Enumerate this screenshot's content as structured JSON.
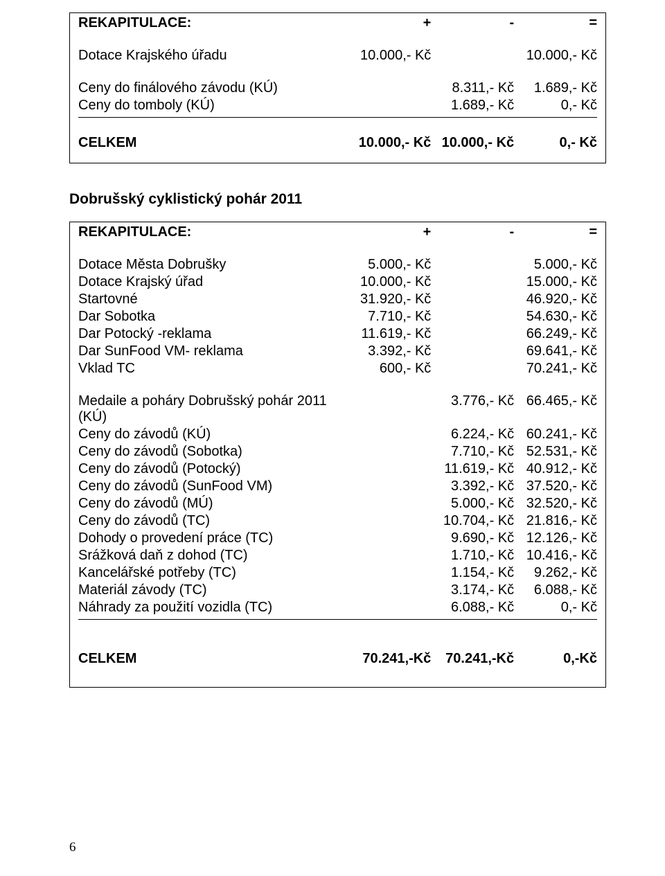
{
  "box1": {
    "header": {
      "label": "REKAPITULACE:",
      "plus": "+",
      "minus": "-",
      "eq": "="
    },
    "rows": [
      {
        "label": "Dotace Krajského úřadu",
        "c2": "10.000,- Kč",
        "c3": "",
        "c4": "10.000,- Kč"
      }
    ],
    "rows2": [
      {
        "label": "Ceny do finálového závodu (KÚ)",
        "c2": "",
        "c3": "8.311,- Kč",
        "c4": "1.689,- Kč"
      },
      {
        "label": "Ceny do tomboly (KÚ)",
        "c2": "",
        "c3": "1.689,- Kč",
        "c4": "0,- Kč"
      }
    ],
    "total": {
      "label": "CELKEM",
      "c2": "10.000,- Kč",
      "c3": "10.000,- Kč",
      "c4": "0,- Kč"
    }
  },
  "section2_title": "Dobrušský cyklistický pohár 2011",
  "box2": {
    "header": {
      "label": "REKAPITULACE:",
      "plus": "+",
      "minus": "-",
      "eq": "="
    },
    "incomes": [
      {
        "label": "Dotace Města Dobrušky",
        "c2": "5.000,- Kč",
        "c4": "5.000,- Kč"
      },
      {
        "label": "Dotace Krajský úřad",
        "c2": "10.000,- Kč",
        "c4": "15.000,- Kč"
      },
      {
        "label": "Startovné",
        "c2": "31.920,- Kč",
        "c4": "46.920,- Kč"
      },
      {
        "label": "Dar Sobotka",
        "c2": "7.710,- Kč",
        "c4": "54.630,- Kč"
      },
      {
        "label": "Dar Potocký -reklama",
        "c2": "11.619,- Kč",
        "c4": "66.249,- Kč"
      },
      {
        "label": "Dar SunFood VM- reklama",
        "c2": "3.392,- Kč",
        "c4": "69.641,- Kč"
      },
      {
        "label": "Vklad TC",
        "c2": "600,- Kč",
        "c4": "70.241,- Kč"
      }
    ],
    "expenses": [
      {
        "label": "Medaile a poháry Dobrušský pohár 2011 (KÚ)",
        "c3": "3.776,- Kč",
        "c4": "66.465,- Kč"
      },
      {
        "label": "Ceny do závodů (KÚ)",
        "c3": "6.224,- Kč",
        "c4": "60.241,- Kč"
      },
      {
        "label": "Ceny do závodů (Sobotka)",
        "c3": "7.710,- Kč",
        "c4": "52.531,- Kč"
      },
      {
        "label": "Ceny do závodů (Potocký)",
        "c3": "11.619,- Kč",
        "c4": "40.912,- Kč"
      },
      {
        "label": "Ceny do závodů (SunFood VM)",
        "c3": "3.392,- Kč",
        "c4": "37.520,- Kč"
      },
      {
        "label": "Ceny do závodů (MÚ)",
        "c3": "5.000,- Kč",
        "c4": "32.520,- Kč"
      },
      {
        "label": "Ceny do závodů (TC)",
        "c3": "10.704,- Kč",
        "c4": "21.816,- Kč"
      },
      {
        "label": "Dohody o provedení práce (TC)",
        "c3": "9.690,- Kč",
        "c4": "12.126,- Kč"
      },
      {
        "label": "Srážková daň z dohod (TC)",
        "c3": "1.710,- Kč",
        "c4": "10.416,- Kč"
      },
      {
        "label": "Kancelářské potřeby (TC)",
        "c3": "1.154,- Kč",
        "c4": "9.262,- Kč"
      },
      {
        "label": "Materiál závody (TC)",
        "c3": "3.174,- Kč",
        "c4": "6.088,- Kč"
      },
      {
        "label": "Náhrady za použití vozidla (TC)",
        "c3": "6.088,- Kč",
        "c4": "0,- Kč"
      }
    ],
    "total": {
      "label": "CELKEM",
      "c2": "70.241,-Kč",
      "c3": "70.241,-Kč",
      "c4": "0,-Kč"
    }
  },
  "page_number": "6"
}
